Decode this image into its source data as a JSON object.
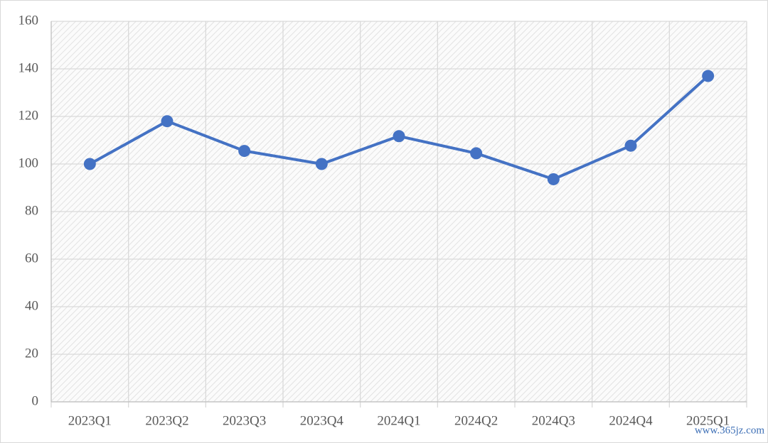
{
  "chart_data": {
    "type": "line",
    "categories": [
      "2023Q1",
      "2023Q2",
      "2023Q3",
      "2023Q4",
      "2024Q1",
      "2024Q2",
      "2024Q3",
      "2024Q4",
      "2025Q1"
    ],
    "values": [
      100,
      118,
      105.5,
      100,
      111.7,
      104.5,
      93.6,
      107.7,
      137
    ],
    "color": "#4472c4",
    "ylim": [
      0,
      160
    ],
    "yticks": [
      0,
      20,
      40,
      60,
      80,
      100,
      120,
      140,
      160
    ],
    "grid": true
  },
  "watermark": "www.365jz.com"
}
